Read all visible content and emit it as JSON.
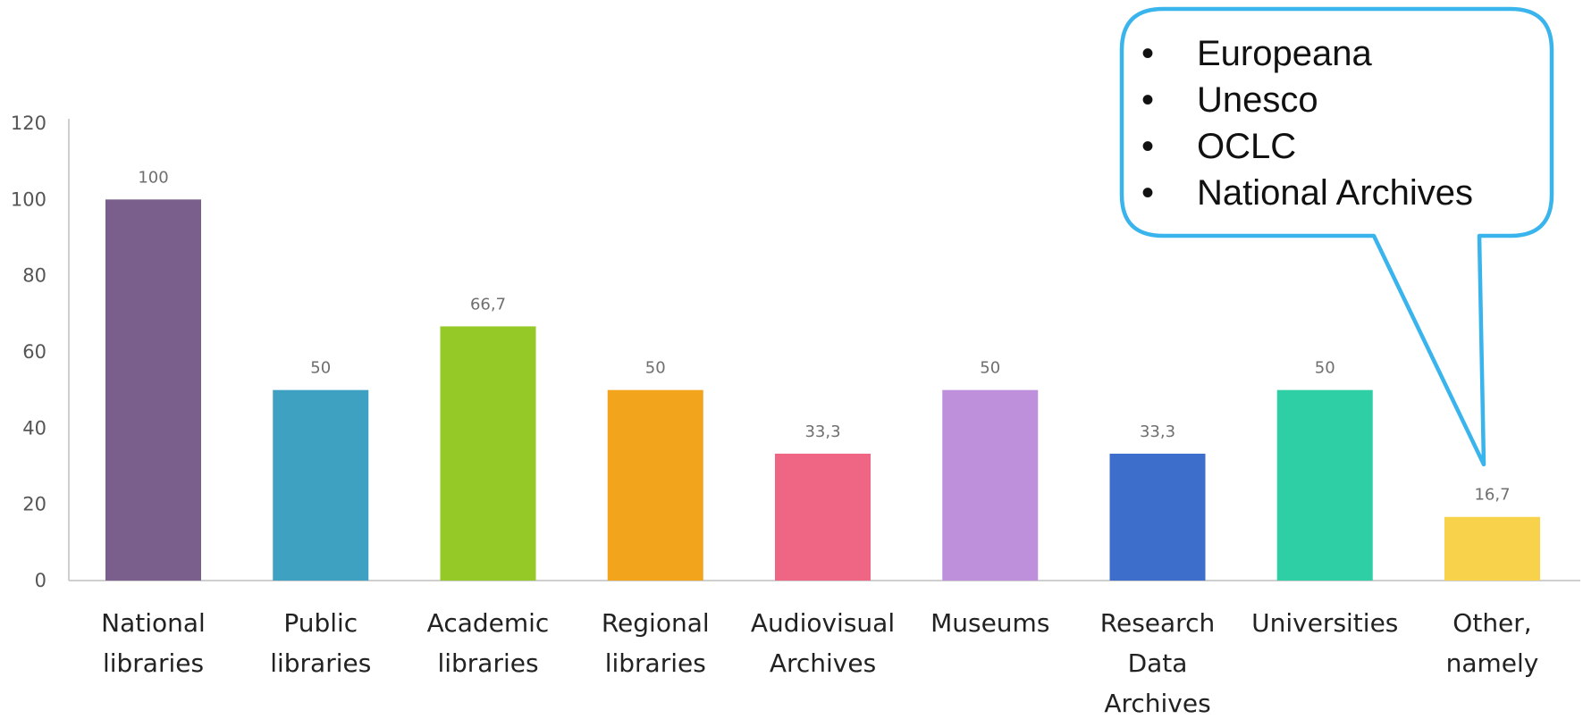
{
  "chart_data": {
    "type": "bar",
    "categories": [
      [
        "National",
        "libraries"
      ],
      [
        "Public",
        "libraries"
      ],
      [
        "Academic",
        "libraries"
      ],
      [
        "Regional",
        "libraries"
      ],
      [
        "Audiovisual",
        "Archives"
      ],
      [
        "Museums"
      ],
      [
        "Research",
        "Data",
        "Archives"
      ],
      [
        "Universities"
      ],
      [
        "Other,",
        "namely"
      ]
    ],
    "values": [
      100,
      50,
      66.7,
      50,
      33.3,
      50,
      33.3,
      50,
      16.7
    ],
    "value_labels": [
      "100",
      "50",
      "66,7",
      "50",
      "33,3",
      "50",
      "33,3",
      "50",
      "16,7"
    ],
    "colors": [
      "#7a5f8d",
      "#3fa1c2",
      "#95c928",
      "#f2a41c",
      "#ef6584",
      "#be8fdb",
      "#3e6ecb",
      "#2ecfa5",
      "#f8d24a"
    ],
    "ylim": [
      0,
      120
    ],
    "yticks": [
      0,
      20,
      40,
      60,
      80,
      100,
      120
    ],
    "title": "",
    "xlabel": "",
    "ylabel": "",
    "grid": false,
    "legend": "none"
  },
  "callout": {
    "items": [
      "Europeana",
      "Unesco",
      "OCLC",
      "National Archives"
    ],
    "bullet": "•",
    "border_color": "#3ab4ec",
    "points_to": "Other, namely"
  }
}
